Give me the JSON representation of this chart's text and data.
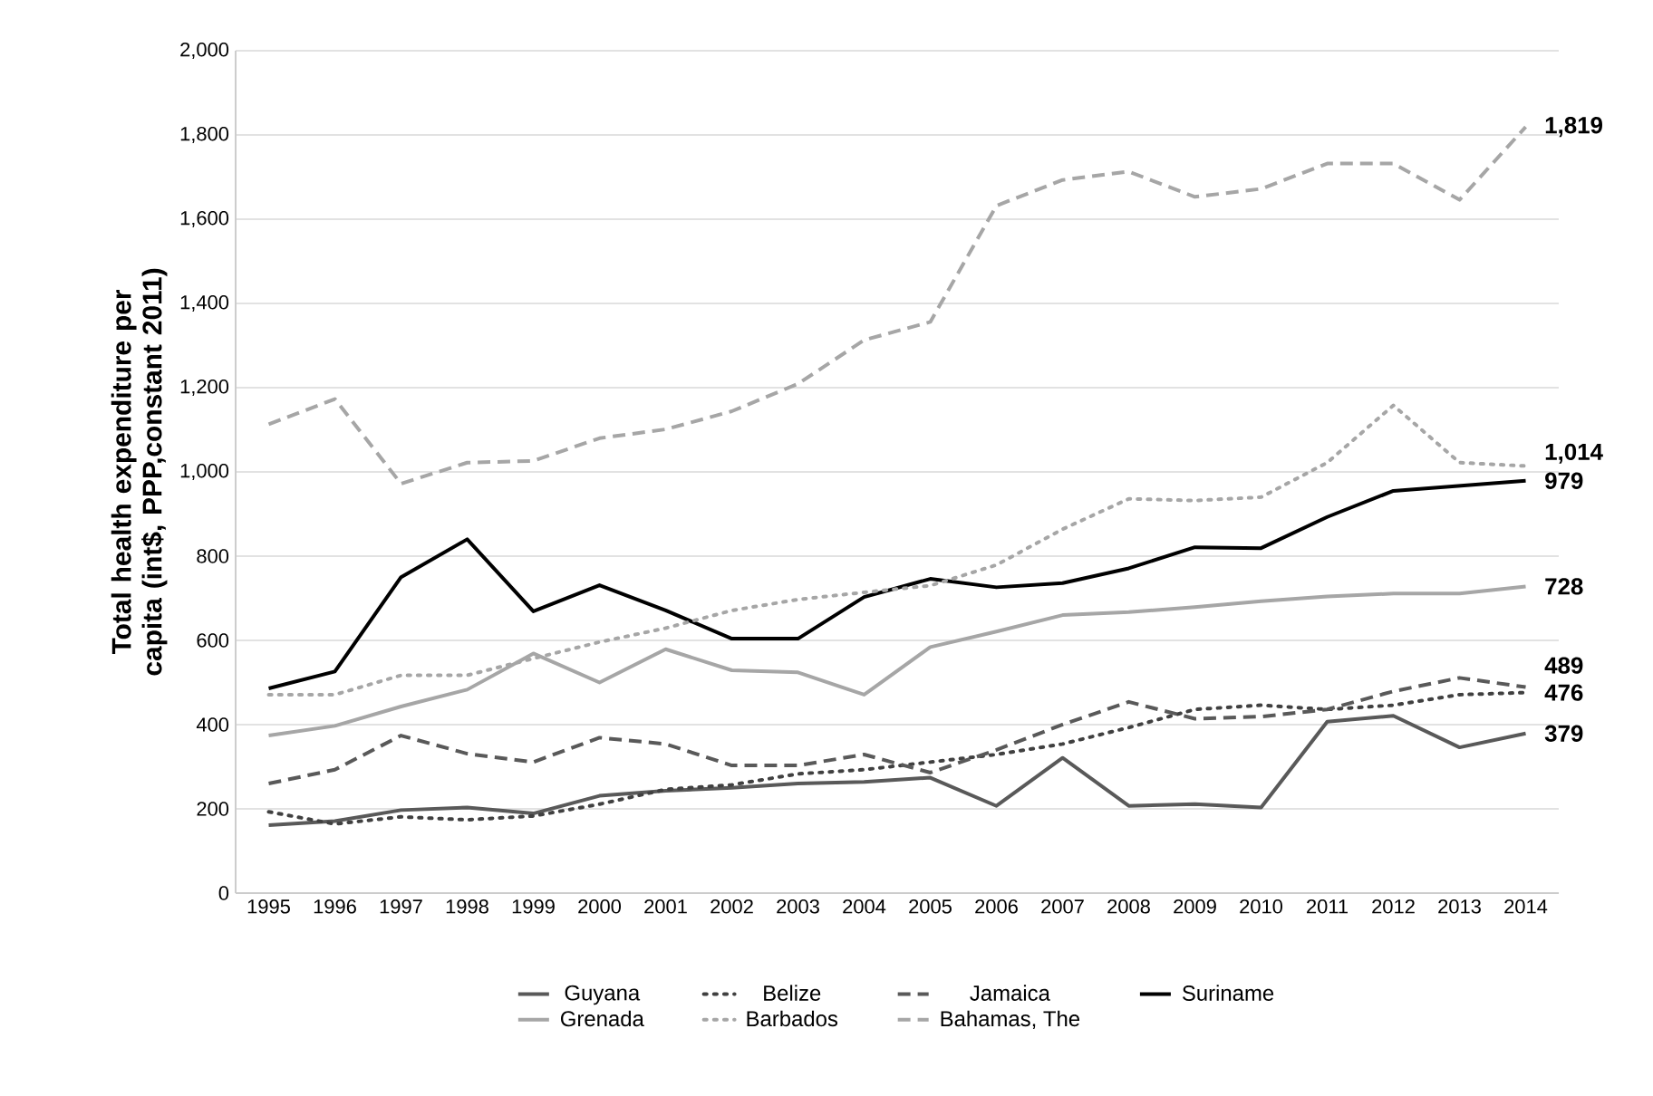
{
  "chart_data": {
    "type": "line",
    "ylabel": "Total health expenditure per capita (int$, PPP,constant 2011)",
    "categories": [
      "1995",
      "1996",
      "1997",
      "1998",
      "1999",
      "2000",
      "2001",
      "2002",
      "2003",
      "2004",
      "2005",
      "2006",
      "2007",
      "2008",
      "2009",
      "2010",
      "2011",
      "2012",
      "2013",
      "2014"
    ],
    "ylim": [
      0,
      2000
    ],
    "yticks": [
      0,
      200,
      400,
      600,
      800,
      {
        "value": 1000,
        "label": "1,000"
      },
      {
        "value": 1200,
        "label": "1,200"
      },
      {
        "value": 1400,
        "label": "1,400"
      },
      {
        "value": 1600,
        "label": "1,600"
      },
      {
        "value": 1800,
        "label": "1,800"
      },
      {
        "value": 2000,
        "label": "2,000"
      }
    ],
    "grid": "y",
    "legend": "bottom",
    "marker": "none",
    "series": [
      {
        "name": "Guyana",
        "color": "#595959",
        "line_style": "solid",
        "values": [
          161,
          171,
          197,
          203,
          189,
          231,
          243,
          250,
          260,
          264,
          274,
          207,
          321,
          207,
          211,
          203,
          407,
          421,
          346,
          379
        ],
        "value_labels": [
          null,
          null,
          null,
          null,
          null,
          null,
          null,
          null,
          null,
          null,
          null,
          null,
          null,
          null,
          null,
          null,
          null,
          null,
          null,
          "379"
        ]
      },
      {
        "name": "Belize",
        "color": "#404040",
        "line_style": "dotted",
        "values": [
          193,
          164,
          181,
          174,
          183,
          211,
          246,
          257,
          283,
          293,
          311,
          329,
          354,
          393,
          436,
          446,
          436,
          446,
          471,
          476
        ],
        "value_labels": [
          null,
          null,
          null,
          null,
          null,
          null,
          null,
          null,
          null,
          null,
          null,
          null,
          null,
          null,
          null,
          null,
          null,
          null,
          null,
          "476"
        ]
      },
      {
        "name": "Jamaica",
        "color": "#595959",
        "line_style": "dashed",
        "values": [
          260,
          293,
          374,
          331,
          311,
          369,
          354,
          303,
          303,
          329,
          286,
          340,
          400,
          454,
          414,
          419,
          436,
          479,
          511,
          489
        ],
        "value_labels": [
          null,
          null,
          null,
          null,
          null,
          null,
          null,
          null,
          null,
          null,
          null,
          null,
          null,
          null,
          null,
          null,
          null,
          null,
          null,
          "489"
        ]
      },
      {
        "name": "Suriname",
        "color": "#000000",
        "line_style": "solid",
        "values": [
          486,
          526,
          750,
          840,
          669,
          731,
          671,
          604,
          604,
          703,
          746,
          726,
          736,
          771,
          821,
          819,
          893,
          955,
          967,
          979
        ],
        "value_labels": [
          null,
          null,
          null,
          null,
          null,
          null,
          null,
          null,
          null,
          null,
          null,
          null,
          null,
          null,
          null,
          null,
          null,
          null,
          null,
          "979"
        ]
      },
      {
        "name": "Grenada",
        "color": "#a6a6a6",
        "line_style": "solid",
        "values": [
          374,
          397,
          443,
          483,
          569,
          500,
          579,
          529,
          524,
          471,
          584,
          621,
          660,
          667,
          679,
          693,
          704,
          711,
          711,
          728
        ],
        "value_labels": [
          null,
          null,
          null,
          null,
          null,
          null,
          null,
          null,
          null,
          null,
          null,
          null,
          null,
          null,
          null,
          null,
          null,
          null,
          null,
          "728"
        ]
      },
      {
        "name": "Barbados",
        "color": "#a6a6a6",
        "line_style": "dotted",
        "values": [
          471,
          471,
          517,
          517,
          557,
          596,
          629,
          671,
          697,
          714,
          730,
          779,
          864,
          936,
          932,
          940,
          1022,
          1158,
          1022,
          1014
        ],
        "value_labels": [
          null,
          null,
          null,
          null,
          null,
          null,
          null,
          null,
          null,
          null,
          null,
          null,
          null,
          null,
          null,
          null,
          null,
          null,
          null,
          "1,014"
        ]
      },
      {
        "name": "Bahamas, The",
        "color": "#a6a6a6",
        "line_style": "dashed",
        "values": [
          1113,
          1173,
          972,
          1022,
          1026,
          1080,
          1101,
          1144,
          1209,
          1313,
          1356,
          1632,
          1693,
          1713,
          1653,
          1672,
          1732,
          1732,
          1646,
          1819
        ],
        "value_labels": [
          null,
          null,
          null,
          null,
          null,
          null,
          null,
          null,
          null,
          null,
          null,
          null,
          null,
          null,
          null,
          null,
          null,
          null,
          null,
          "1,819"
        ]
      }
    ]
  }
}
